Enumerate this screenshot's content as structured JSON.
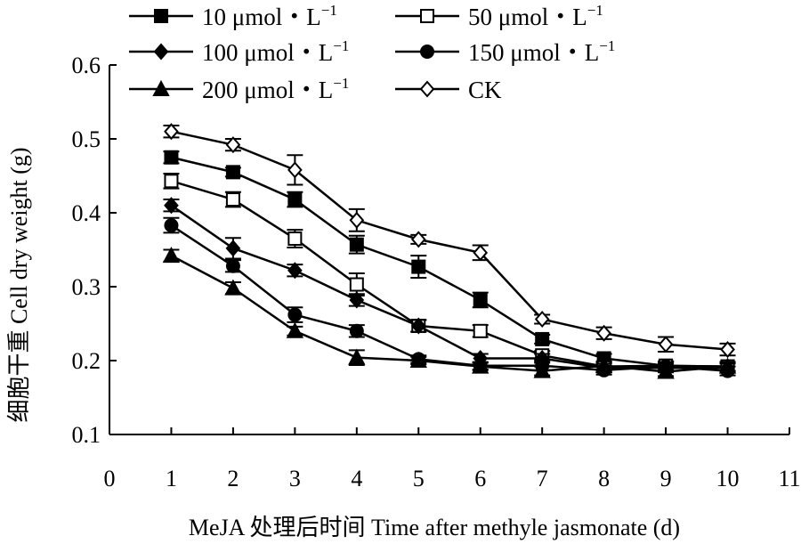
{
  "chart_data": {
    "type": "line",
    "title": "",
    "xlabel": "MeJA 处理后时间 Time after methyle jasmonate (d)",
    "ylabel": "细胞干重 Cell dry weight (g)",
    "xlim": [
      0,
      11
    ],
    "ylim": [
      0.1,
      0.6
    ],
    "x_ticks": [
      "0",
      "1",
      "2",
      "3",
      "4",
      "5",
      "6",
      "7",
      "8",
      "9",
      "10",
      "11"
    ],
    "y_ticks": [
      "0.1",
      "0.2",
      "0.3",
      "0.4",
      "0.5",
      "0.6"
    ],
    "grid": false,
    "legend_position": "top",
    "x": [
      1,
      2,
      3,
      4,
      5,
      6,
      7,
      8,
      9,
      10
    ],
    "series": [
      {
        "name": "10 μmol・L",
        "unit_exp": "−1",
        "marker": "square-filled",
        "values": [
          0.475,
          0.455,
          0.418,
          0.357,
          0.327,
          0.282,
          0.229,
          0.203,
          0.193,
          0.192
        ],
        "errors": [
          0.008,
          0.006,
          0.01,
          0.012,
          0.015,
          0.01,
          0.006,
          0.006,
          0.006,
          0.006
        ]
      },
      {
        "name": "50 μmol・L",
        "unit_exp": "−1",
        "marker": "square-open",
        "values": [
          0.443,
          0.418,
          0.365,
          0.303,
          0.247,
          0.24,
          0.207,
          0.192,
          0.193,
          0.192
        ],
        "errors": [
          0.01,
          0.01,
          0.012,
          0.015,
          0.008,
          0.008,
          0.006,
          0.006,
          0.006,
          0.006
        ]
      },
      {
        "name": "100 μmol・L",
        "unit_exp": "−1",
        "marker": "diamond-filled",
        "values": [
          0.41,
          0.352,
          0.322,
          0.282,
          0.247,
          0.203,
          0.203,
          0.19,
          0.19,
          0.19
        ],
        "errors": [
          0.008,
          0.014,
          0.008,
          0.008,
          0.008,
          0.006,
          0.006,
          0.006,
          0.006,
          0.006
        ]
      },
      {
        "name": "150 μmol・L",
        "unit_exp": "−1",
        "marker": "circle-filled",
        "values": [
          0.383,
          0.328,
          0.262,
          0.24,
          0.202,
          0.193,
          0.193,
          0.187,
          0.192,
          0.186
        ],
        "errors": [
          0.01,
          0.008,
          0.01,
          0.008,
          0.005,
          0.005,
          0.006,
          0.006,
          0.006,
          0.006
        ]
      },
      {
        "name": "200 μmol・L",
        "unit_exp": "−1",
        "marker": "triangle-filled",
        "values": [
          0.342,
          0.298,
          0.24,
          0.204,
          0.2,
          0.192,
          0.186,
          0.193,
          0.185,
          0.192
        ],
        "errors": [
          0.008,
          0.008,
          0.006,
          0.01,
          0.005,
          0.005,
          0.006,
          0.006,
          0.006,
          0.006
        ]
      },
      {
        "name": "CK",
        "unit_exp": "",
        "marker": "diamond-open",
        "values": [
          0.51,
          0.492,
          0.458,
          0.39,
          0.364,
          0.346,
          0.256,
          0.237,
          0.222,
          0.215
        ],
        "errors": [
          0.008,
          0.008,
          0.02,
          0.015,
          0.006,
          0.01,
          0.006,
          0.008,
          0.01,
          0.008
        ]
      }
    ]
  }
}
